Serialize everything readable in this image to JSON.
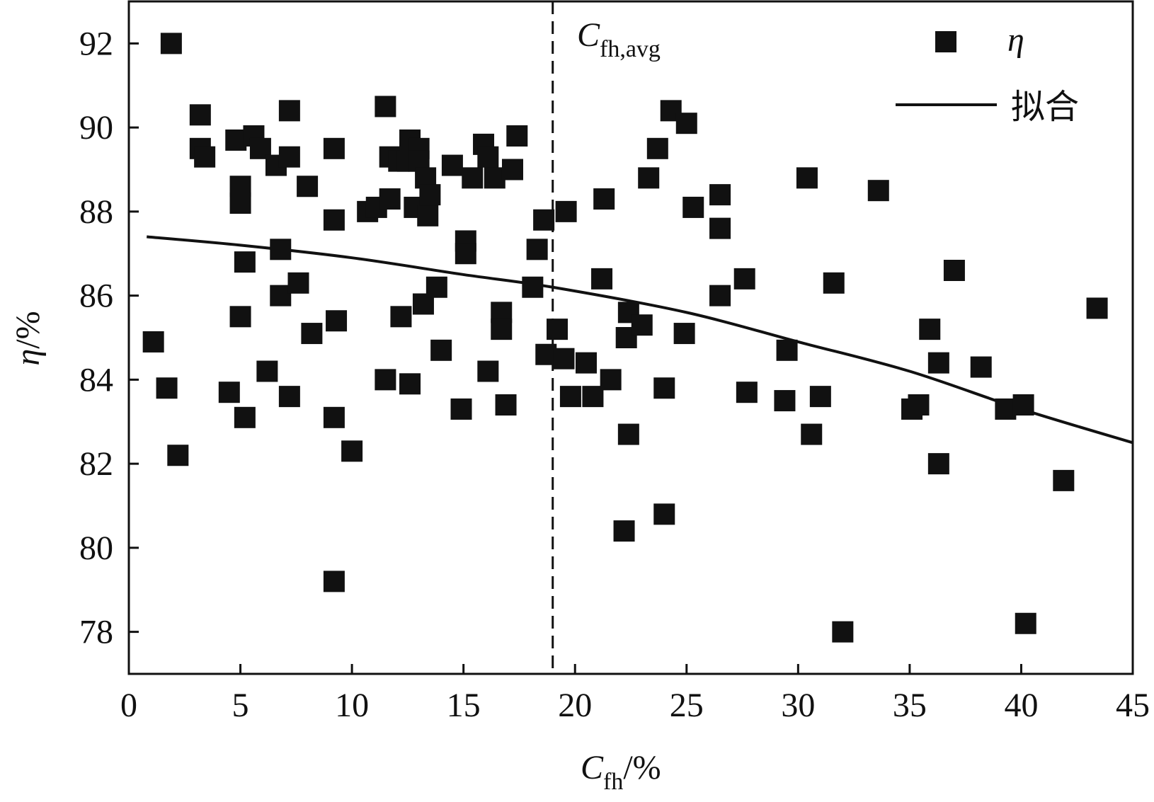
{
  "chart_data": {
    "type": "scatter",
    "title": "",
    "xlabel": {
      "main": "C",
      "sub": "fh",
      "suffix": "/%"
    },
    "ylabel": {
      "main": "η",
      "suffix": "/%"
    },
    "xlim": [
      0,
      45
    ],
    "ylim": [
      77,
      93
    ],
    "xticks": [
      0,
      5,
      10,
      15,
      20,
      25,
      30,
      35,
      40,
      45
    ],
    "yticks": [
      78,
      80,
      82,
      84,
      86,
      88,
      90,
      92
    ],
    "xtick_labels": [
      "0",
      "5",
      "10",
      "15",
      "20",
      "25",
      "30",
      "35",
      "40",
      "45"
    ],
    "ytick_labels": [
      "78",
      "80",
      "82",
      "84",
      "86",
      "88",
      "90",
      "92"
    ],
    "grid": false,
    "legend_position": "top-right",
    "legend": [
      {
        "label": "η",
        "marker": "square"
      },
      {
        "label": "拟合",
        "marker": "line"
      }
    ],
    "vline": {
      "x": 19,
      "style": "dashed",
      "label_main": "C",
      "label_sub": "fh,avg"
    },
    "fit_curve": {
      "x": [
        0.8,
        5,
        10,
        15,
        19,
        25,
        30,
        35,
        40,
        45
      ],
      "y": [
        87.4,
        87.2,
        86.9,
        86.5,
        86.2,
        85.6,
        84.9,
        84.2,
        83.3,
        82.5
      ]
    },
    "series": [
      {
        "name": "η",
        "points": [
          [
            1.1,
            84.9
          ],
          [
            1.7,
            83.8
          ],
          [
            1.9,
            92.0
          ],
          [
            2.2,
            82.2
          ],
          [
            3.2,
            90.3
          ],
          [
            3.2,
            89.5
          ],
          [
            3.4,
            89.3
          ],
          [
            4.5,
            83.7
          ],
          [
            4.8,
            89.7
          ],
          [
            5.0,
            88.6
          ],
          [
            5.0,
            88.2
          ],
          [
            5.0,
            85.5
          ],
          [
            5.2,
            83.1
          ],
          [
            5.2,
            86.8
          ],
          [
            5.6,
            89.8
          ],
          [
            5.9,
            89.5
          ],
          [
            6.2,
            84.2
          ],
          [
            6.6,
            89.1
          ],
          [
            6.8,
            87.1
          ],
          [
            6.8,
            86.0
          ],
          [
            7.2,
            90.4
          ],
          [
            7.2,
            89.3
          ],
          [
            7.2,
            83.6
          ],
          [
            7.6,
            86.3
          ],
          [
            8.0,
            88.6
          ],
          [
            8.2,
            85.1
          ],
          [
            9.2,
            89.5
          ],
          [
            9.2,
            87.8
          ],
          [
            9.3,
            85.4
          ],
          [
            9.2,
            83.1
          ],
          [
            9.2,
            79.2
          ],
          [
            10.0,
            82.3
          ],
          [
            10.7,
            88.0
          ],
          [
            11.1,
            88.1
          ],
          [
            11.5,
            90.5
          ],
          [
            11.5,
            84.0
          ],
          [
            11.7,
            89.3
          ],
          [
            11.7,
            88.3
          ],
          [
            12.1,
            89.2
          ],
          [
            12.2,
            85.5
          ],
          [
            12.5,
            89.2
          ],
          [
            12.6,
            89.7
          ],
          [
            12.6,
            83.9
          ],
          [
            12.8,
            88.1
          ],
          [
            13.0,
            89.5
          ],
          [
            13.0,
            89.2
          ],
          [
            13.2,
            85.8
          ],
          [
            13.3,
            88.8
          ],
          [
            13.4,
            87.9
          ],
          [
            13.5,
            88.4
          ],
          [
            13.8,
            86.2
          ],
          [
            14.0,
            84.7
          ],
          [
            14.5,
            89.1
          ],
          [
            14.9,
            83.3
          ],
          [
            15.1,
            87.3
          ],
          [
            15.1,
            87.0
          ],
          [
            15.4,
            88.8
          ],
          [
            15.9,
            89.6
          ],
          [
            16.1,
            89.3
          ],
          [
            16.1,
            84.2
          ],
          [
            16.4,
            88.8
          ],
          [
            16.7,
            85.6
          ],
          [
            16.7,
            85.2
          ],
          [
            16.9,
            83.4
          ],
          [
            17.2,
            89.0
          ],
          [
            17.4,
            89.8
          ],
          [
            18.1,
            86.2
          ],
          [
            18.3,
            87.1
          ],
          [
            18.6,
            87.8
          ],
          [
            18.7,
            84.6
          ],
          [
            19.2,
            85.2
          ],
          [
            19.5,
            84.5
          ],
          [
            19.6,
            88.0
          ],
          [
            19.8,
            83.6
          ],
          [
            20.5,
            84.4
          ],
          [
            20.8,
            83.6
          ],
          [
            21.2,
            86.4
          ],
          [
            21.3,
            88.3
          ],
          [
            21.6,
            84.0
          ],
          [
            22.2,
            80.4
          ],
          [
            22.3,
            85.0
          ],
          [
            22.4,
            85.6
          ],
          [
            22.4,
            82.7
          ],
          [
            23.0,
            85.3
          ],
          [
            23.3,
            88.8
          ],
          [
            23.7,
            89.5
          ],
          [
            24.0,
            80.8
          ],
          [
            24.0,
            83.8
          ],
          [
            24.3,
            90.4
          ],
          [
            24.9,
            85.1
          ],
          [
            25.0,
            90.1
          ],
          [
            25.3,
            88.1
          ],
          [
            26.5,
            88.4
          ],
          [
            26.5,
            87.6
          ],
          [
            26.5,
            86.0
          ],
          [
            27.6,
            86.4
          ],
          [
            27.7,
            83.7
          ],
          [
            29.4,
            83.5
          ],
          [
            29.5,
            84.7
          ],
          [
            30.4,
            88.8
          ],
          [
            30.6,
            82.7
          ],
          [
            31.0,
            83.6
          ],
          [
            31.6,
            86.3
          ],
          [
            32.0,
            78.0
          ],
          [
            33.6,
            88.5
          ],
          [
            35.1,
            83.3
          ],
          [
            35.4,
            83.4
          ],
          [
            35.9,
            85.2
          ],
          [
            36.3,
            84.4
          ],
          [
            36.3,
            82.0
          ],
          [
            37.0,
            86.6
          ],
          [
            38.2,
            84.3
          ],
          [
            39.3,
            83.3
          ],
          [
            40.1,
            83.4
          ],
          [
            40.2,
            78.2
          ],
          [
            41.9,
            81.6
          ],
          [
            43.4,
            85.7
          ]
        ]
      }
    ]
  }
}
